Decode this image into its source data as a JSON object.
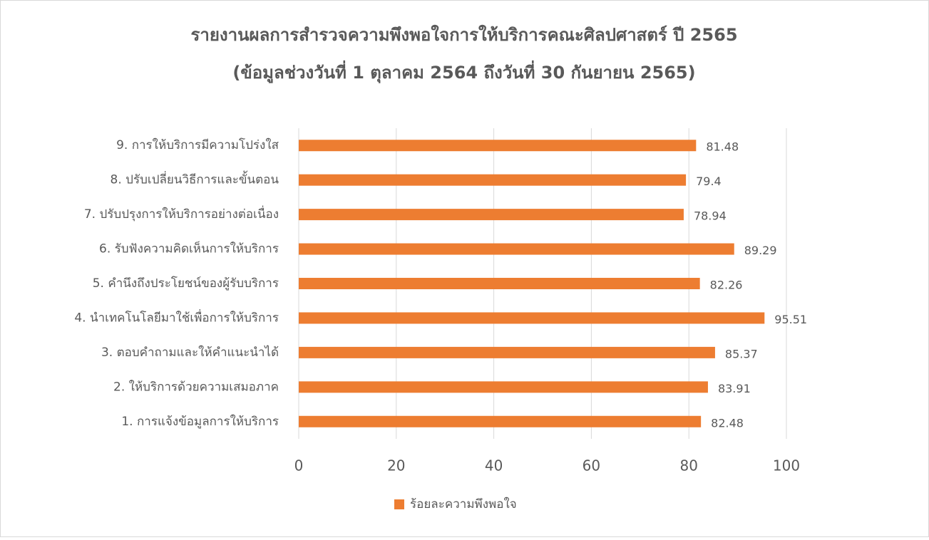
{
  "chart_data": {
    "type": "barh",
    "title": "รายงานผลการสำรวจความพึงพอใจการให้บริการคณะศิลปศาสตร์ ปี 2565",
    "subtitle": "(ข้อมูลช่วงวันที่ 1 ตุลาคม 2564 ถึงวันที่ 30 กันยายน 2565)",
    "categories": [
      "1. การแจ้งข้อมูลการให้บริการ",
      "2. ให้บริการด้วยความเสมอภาค",
      "3. ตอบคำถามและให้คำแนะนำได้",
      "4. นำเทคโนโลยีมาใช้เพื่อการให้บริการ",
      "5. คำนึงถึงประโยชน์ของผู้รับบริการ",
      "6. รับฟังความคิดเห็นการให้บริการ",
      "7. ปรับปรุงการให้บริการอย่างต่อเนื่อง",
      "8. ปรับเปลี่ยนวิธีการและขั้นตอน",
      "9. การให้บริการมีความโปร่งใส"
    ],
    "series": [
      {
        "name": "ร้อยละความพึงพอใจ",
        "color": "#ed7d31",
        "values": [
          82.48,
          83.91,
          85.37,
          95.51,
          82.26,
          89.29,
          78.94,
          79.4,
          81.48
        ]
      }
    ],
    "xlim": [
      0,
      100
    ],
    "xticks": [
      0,
      20,
      40,
      60,
      80,
      100
    ],
    "grid": true,
    "legend": "bottom"
  }
}
